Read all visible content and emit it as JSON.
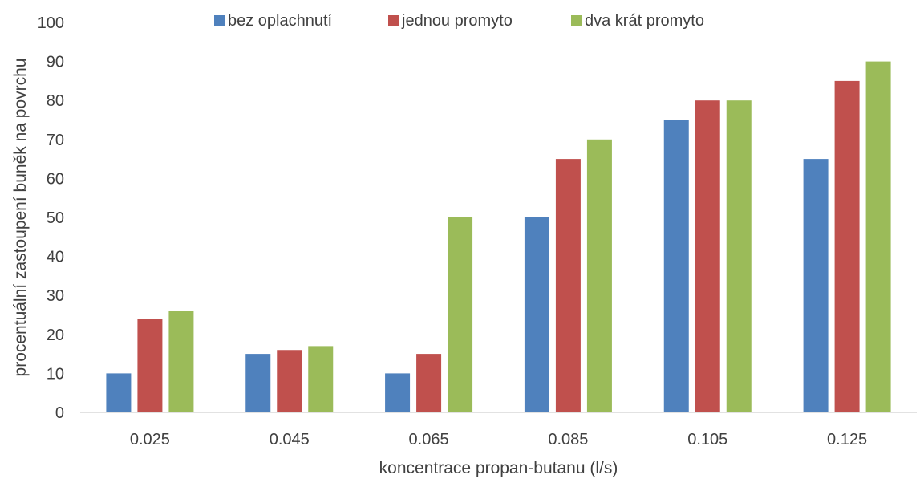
{
  "chart_data": {
    "type": "bar",
    "title": "",
    "xlabel": "koncentrace propan-butanu (l/s)",
    "ylabel": "procentuální zastoupení buněk na povrchu",
    "categories": [
      "0.025",
      "0.045",
      "0.065",
      "0.085",
      "0.105",
      "0.125"
    ],
    "ylim": [
      0,
      100
    ],
    "yticks": [
      "0",
      "10",
      "20",
      "30",
      "40",
      "50",
      "60",
      "70",
      "80",
      "90",
      "100"
    ],
    "grid": false,
    "legend_position": "top",
    "series": [
      {
        "name": "bez oplachnutí",
        "color": "#4F81BD",
        "values": [
          10,
          15,
          10,
          50,
          75,
          65
        ]
      },
      {
        "name": "jednou promyto",
        "color": "#C0504D",
        "values": [
          24,
          16,
          15,
          65,
          80,
          85
        ]
      },
      {
        "name": "dva krát promyto",
        "color": "#9BBB59",
        "values": [
          26,
          17,
          50,
          70,
          80,
          90
        ]
      }
    ]
  }
}
